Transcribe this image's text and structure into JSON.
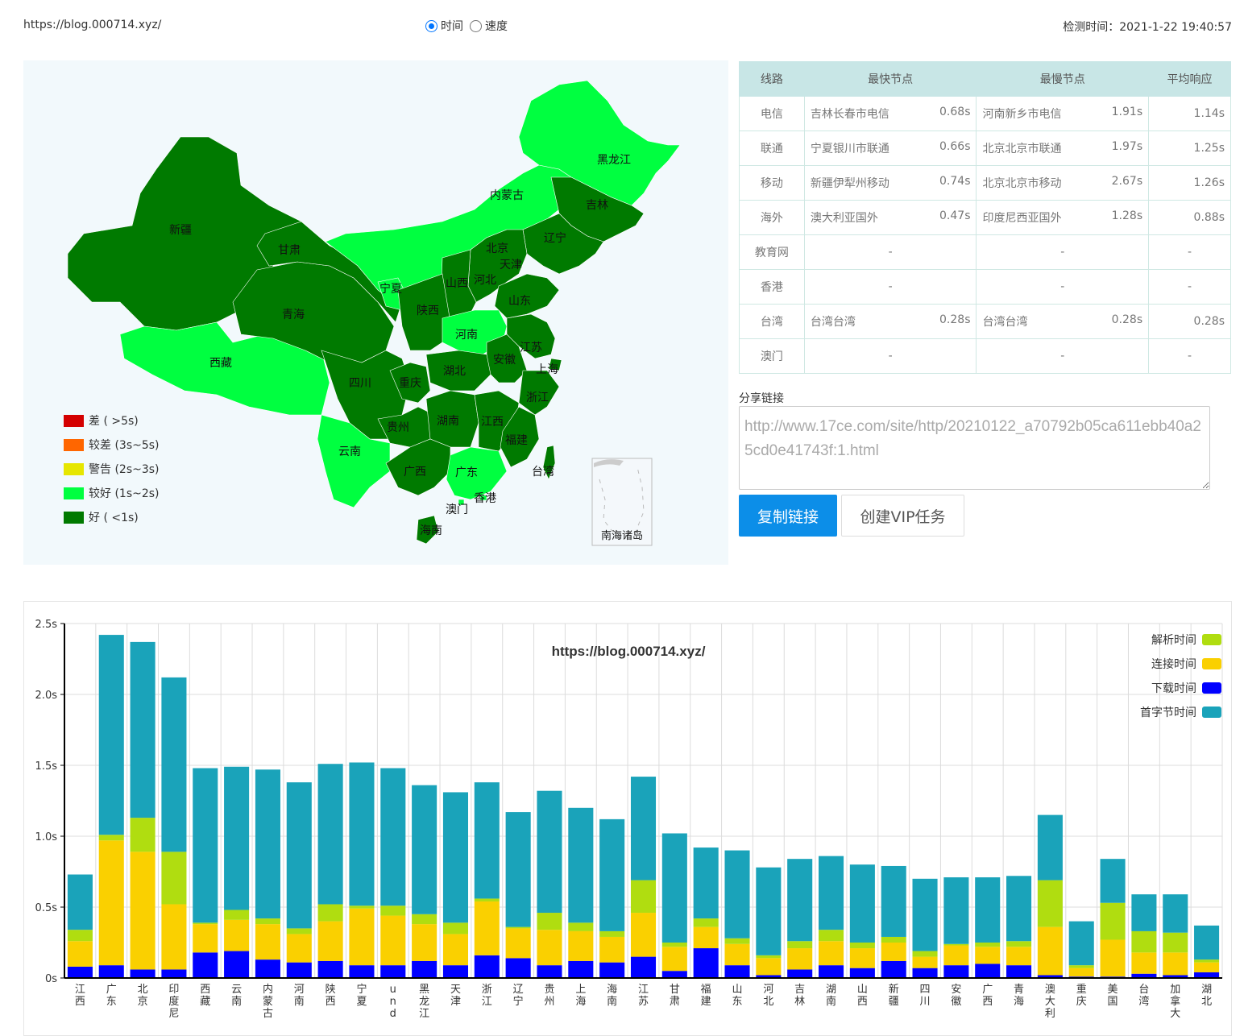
{
  "header": {
    "url": "https://blog.000714.xyz/",
    "radio_time": "时间",
    "radio_speed": "速度",
    "check_time": "检测时间：2021-1-22 19:40:57"
  },
  "map": {
    "provinces": [
      "新疆",
      "西藏",
      "青海",
      "甘肃",
      "内蒙古",
      "黑龙江",
      "吉林",
      "辽宁",
      "北京",
      "天津",
      "河北",
      "山西",
      "宁夏",
      "陕西",
      "山东",
      "河南",
      "江苏",
      "安徽",
      "上海",
      "湖北",
      "四川",
      "重庆",
      "浙江",
      "贵州",
      "湖南",
      "江西",
      "云南",
      "广西",
      "广东",
      "福建",
      "台湾",
      "香港",
      "澳门",
      "海南"
    ],
    "inset_label": "南海诸岛",
    "legend": [
      {
        "label": "差 ( >5s)",
        "color": "#d40000"
      },
      {
        "label": "较差 (3s~5s)",
        "color": "#ff6600"
      },
      {
        "label": "警告 (2s~3s)",
        "color": "#e6e600"
      },
      {
        "label": "较好 (1s~2s)",
        "color": "#00ff40"
      },
      {
        "label": "好 ( <1s)",
        "color": "#007a00"
      }
    ]
  },
  "table": {
    "headers": [
      "线路",
      "最快节点",
      "最慢节点",
      "平均响应"
    ],
    "rows": [
      {
        "line": "电信",
        "fast": "吉林长春市电信",
        "fast_t": "0.68s",
        "slow": "河南新乡市电信",
        "slow_t": "1.91s",
        "avg": "1.14s"
      },
      {
        "line": "联通",
        "fast": "宁夏银川市联通",
        "fast_t": "0.66s",
        "slow": "北京北京市联通",
        "slow_t": "1.97s",
        "avg": "1.25s"
      },
      {
        "line": "移动",
        "fast": "新疆伊犁州移动",
        "fast_t": "0.74s",
        "slow": "北京北京市移动",
        "slow_t": "2.67s",
        "avg": "1.26s"
      },
      {
        "line": "海外",
        "fast": "澳大利亚国外",
        "fast_t": "0.47s",
        "slow": "印度尼西亚国外",
        "slow_t": "1.28s",
        "avg": "0.88s"
      },
      {
        "line": "教育网",
        "fast": "",
        "fast_t": "-",
        "slow": "",
        "slow_t": "-",
        "avg": "-"
      },
      {
        "line": "香港",
        "fast": "",
        "fast_t": "-",
        "slow": "",
        "slow_t": "-",
        "avg": "-"
      },
      {
        "line": "台湾",
        "fast": "台湾台湾",
        "fast_t": "0.28s",
        "slow": "台湾台湾",
        "slow_t": "0.28s",
        "avg": "0.28s"
      },
      {
        "line": "澳门",
        "fast": "",
        "fast_t": "-",
        "slow": "",
        "slow_t": "-",
        "avg": "-"
      }
    ]
  },
  "share": {
    "label": "分享链接",
    "link": "http://www.17ce.com/site/http/20210122_a70792b05ca611ebb40a25cd0e41743f:1.html",
    "copy_button": "复制链接",
    "vip_button": "创建VIP任务"
  },
  "chart_data": {
    "type": "bar",
    "stacked": true,
    "title": "https://blog.000714.xyz/",
    "ylim": [
      0,
      2.5
    ],
    "yticks": [
      "0s",
      "0.5s",
      "1.0s",
      "1.5s",
      "2.0s",
      "2.5s"
    ],
    "legend_position": "top-right",
    "categories": [
      "江西",
      "广东",
      "北京",
      "印度尼",
      "西藏",
      "云南",
      "内蒙古",
      "河南",
      "陕西",
      "宁夏",
      "und",
      "黑龙江",
      "天津",
      "浙江",
      "辽宁",
      "贵州",
      "上海",
      "海南",
      "江苏",
      "甘肃",
      "福建",
      "山东",
      "河北",
      "吉林",
      "湖南",
      "山西",
      "新疆",
      "四川",
      "安徽",
      "广西",
      "青海",
      "澳大利",
      "重庆",
      "美国",
      "台湾",
      "加拿大",
      "湖北"
    ],
    "series": [
      {
        "name": "下载时间",
        "color": "#0000ff",
        "values": [
          0.08,
          0.09,
          0.06,
          0.06,
          0.18,
          0.19,
          0.13,
          0.11,
          0.12,
          0.09,
          0.09,
          0.12,
          0.09,
          0.16,
          0.14,
          0.09,
          0.12,
          0.11,
          0.15,
          0.05,
          0.21,
          0.09,
          0.02,
          0.06,
          0.09,
          0.07,
          0.12,
          0.07,
          0.09,
          0.1,
          0.09,
          0.02,
          0.01,
          0.01,
          0.03,
          0.02,
          0.04
        ]
      },
      {
        "name": "连接时间",
        "color": "#fad000",
        "values": [
          0.18,
          0.88,
          0.83,
          0.46,
          0.2,
          0.22,
          0.25,
          0.2,
          0.28,
          0.4,
          0.35,
          0.26,
          0.22,
          0.38,
          0.21,
          0.25,
          0.21,
          0.18,
          0.31,
          0.17,
          0.15,
          0.15,
          0.12,
          0.15,
          0.17,
          0.14,
          0.13,
          0.08,
          0.14,
          0.12,
          0.13,
          0.34,
          0.06,
          0.26,
          0.15,
          0.16,
          0.07
        ]
      },
      {
        "name": "解析时间",
        "color": "#b0dd10",
        "values": [
          0.08,
          0.04,
          0.24,
          0.37,
          0.01,
          0.07,
          0.04,
          0.04,
          0.12,
          0.02,
          0.07,
          0.07,
          0.08,
          0.02,
          0.01,
          0.12,
          0.06,
          0.04,
          0.23,
          0.03,
          0.06,
          0.04,
          0.02,
          0.05,
          0.08,
          0.04,
          0.04,
          0.04,
          0.01,
          0.03,
          0.04,
          0.33,
          0.02,
          0.26,
          0.15,
          0.14,
          0.02
        ]
      },
      {
        "name": "首字节时间",
        "color": "#1aa3ba",
        "values": [
          0.39,
          1.41,
          1.24,
          1.23,
          1.09,
          1.01,
          1.05,
          1.03,
          0.99,
          1.01,
          0.97,
          0.91,
          0.92,
          0.82,
          0.81,
          0.86,
          0.81,
          0.79,
          0.73,
          0.77,
          0.5,
          0.62,
          0.62,
          0.58,
          0.52,
          0.55,
          0.5,
          0.51,
          0.47,
          0.46,
          0.46,
          0.46,
          0.31,
          0.31,
          0.26,
          0.27,
          0.24
        ]
      }
    ]
  }
}
